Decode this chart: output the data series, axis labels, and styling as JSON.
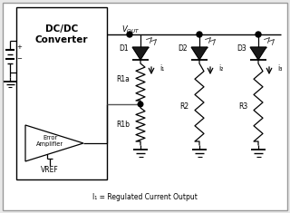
{
  "bg_color": "#e8e8e8",
  "inner_bg": "#ffffff",
  "line_color": "#000000",
  "text_color": "#000000",
  "title": "I₁ = Regulated Current Output",
  "dc_dc_label": "DC/DC\nConverter",
  "error_amp_label": "Error\nAmplifier",
  "vref_label": "VREF",
  "d1_label": "D1",
  "d2_label": "D2",
  "d3_label": "D3",
  "r1a_label": "R1a",
  "r1b_label": "R1b",
  "r2_label": "R2",
  "r3_label": "R3",
  "i1_label": "i₁",
  "i2_label": "i₂",
  "i3_label": "i₃",
  "figsize": [
    3.2,
    2.35
  ],
  "dpi": 100
}
